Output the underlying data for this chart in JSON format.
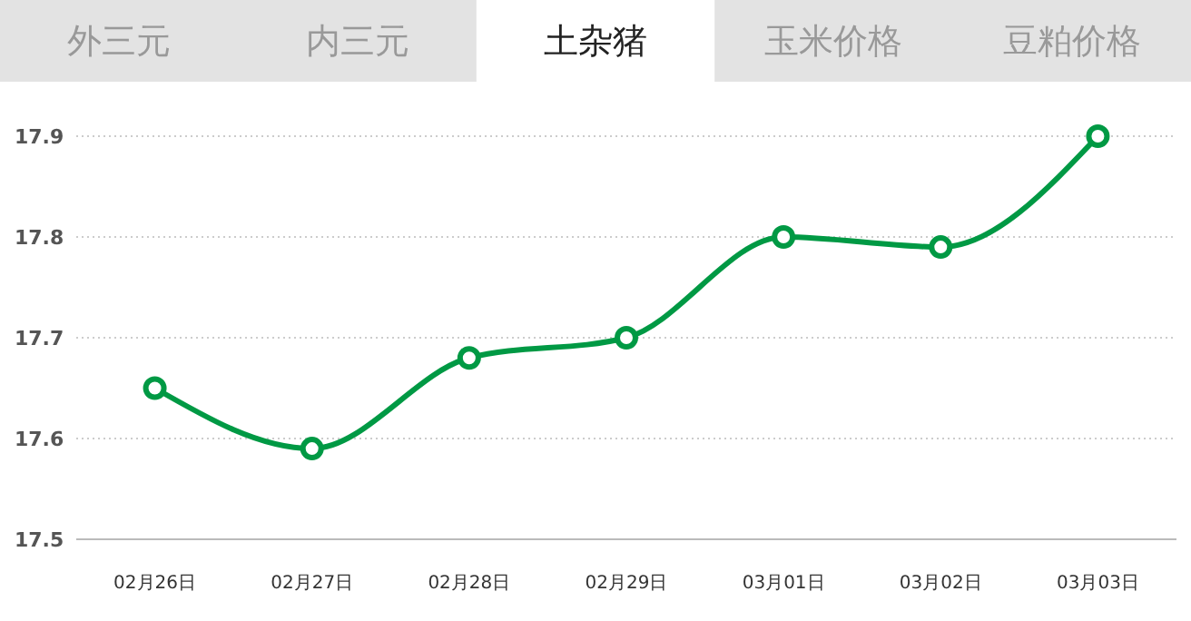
{
  "chart_data": {
    "type": "line",
    "title": "土杂猪",
    "annotations": [
      "外三元",
      "内三元",
      "玉米价格",
      "豆粕价格"
    ],
    "categories": [
      "02月26日",
      "02月27日",
      "02月28日",
      "02月29日",
      "03月01日",
      "03月02日",
      "03月03日"
    ],
    "series": [
      {
        "color": "#009944",
        "values": [
          17.65,
          17.59,
          17.68,
          17.7,
          17.8,
          17.79,
          17.9
        ]
      }
    ],
    "ylim": [
      17.5,
      17.9
    ],
    "yticks": [
      17.5,
      17.6,
      17.7,
      17.8,
      17.9
    ],
    "grid": "y",
    "marker": "circle",
    "line_style": "solid"
  }
}
